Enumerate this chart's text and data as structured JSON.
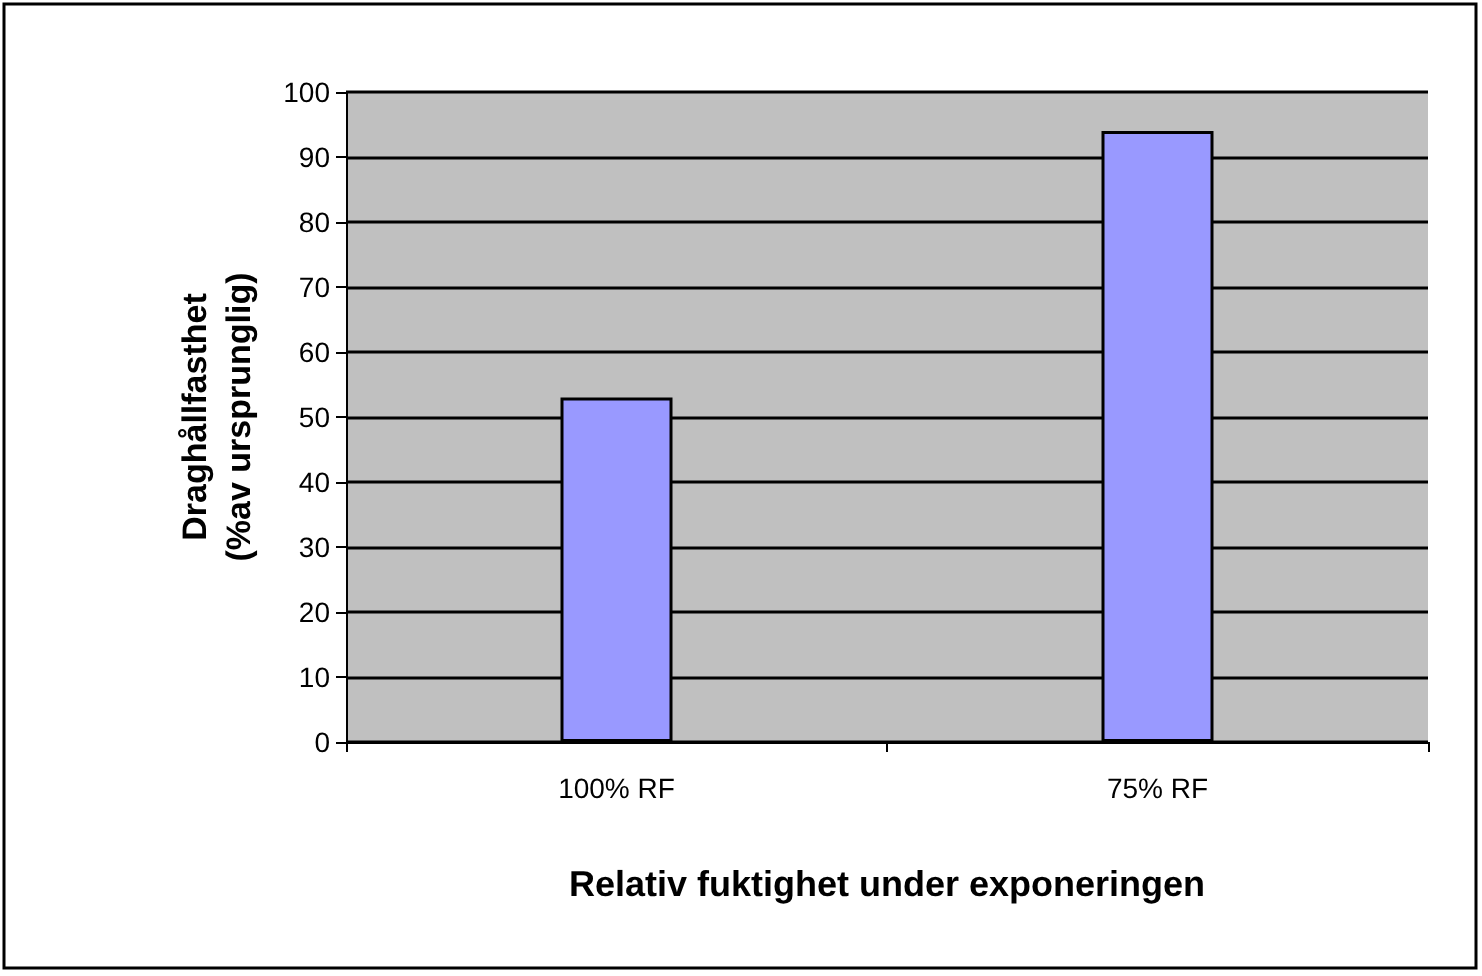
{
  "chart_data": {
    "type": "bar",
    "xlabel": "Relativ fuktighet under exponeringen",
    "ylabel": "Draghållfasthet\n(%av ursprunglig)",
    "categories": [
      "100% RF",
      "75% RF"
    ],
    "values": [
      53,
      94
    ],
    "color": "#9999ff",
    "ylim": [
      0,
      100
    ],
    "yticks": [
      0,
      10,
      20,
      30,
      40,
      50,
      60,
      70,
      80,
      90,
      100
    ],
    "grid": true
  }
}
